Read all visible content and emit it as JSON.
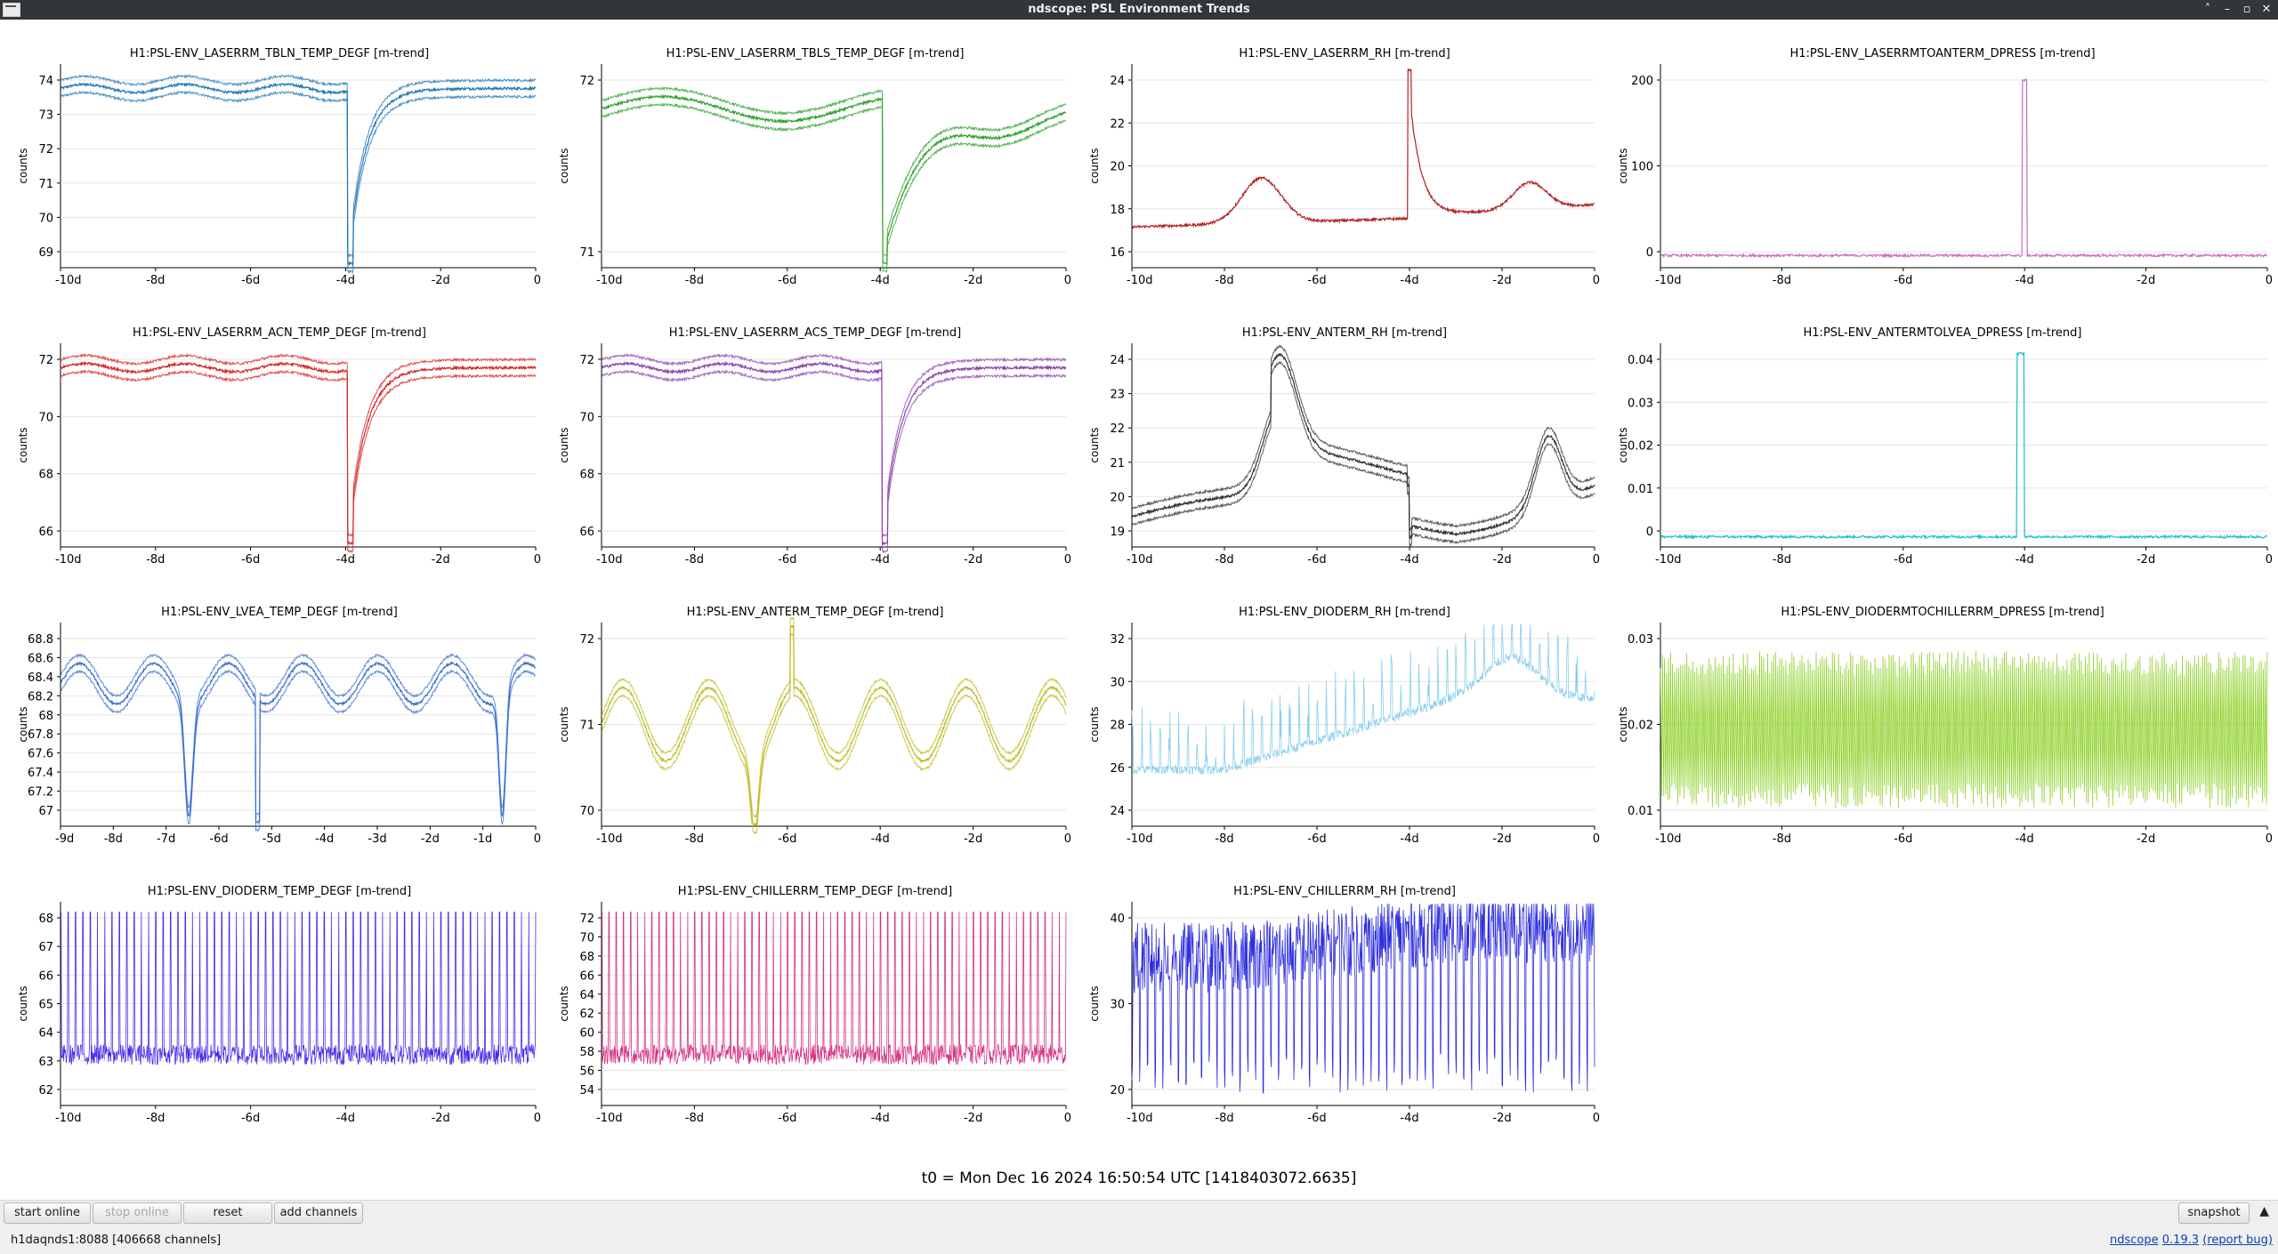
{
  "window": {
    "title": "ndscope: PSL Environment Trends",
    "controls": [
      "˄",
      "–",
      "▫",
      "✕"
    ]
  },
  "plots": [
    {
      "title": "H1:PSL-ENV_LASERRM_TBLN_TEMP_DEGF [m-trend]",
      "ylabel": "counts",
      "color": "#1f77b4",
      "yticks": [
        "74",
        "73",
        "72",
        "71",
        "70",
        "69"
      ],
      "xticks": [
        "-10d",
        "-8d",
        "-6d",
        "-4d",
        "-2d",
        "0"
      ],
      "signal": "temp-dip",
      "band": true
    },
    {
      "title": "H1:PSL-ENV_LASERRM_TBLS_TEMP_DEGF [m-trend]",
      "ylabel": "counts",
      "color": "#2ca02c",
      "yticks": [
        "72",
        "71"
      ],
      "xticks": [
        "-10d",
        "-8d",
        "-6d",
        "-4d",
        "-2d",
        "0"
      ],
      "signal": "temp-dip-wide",
      "band": true
    },
    {
      "title": "H1:PSL-ENV_LASERRM_RH [m-trend]",
      "ylabel": "counts",
      "color": "#b22222",
      "yticks": [
        "24",
        "22",
        "20",
        "18",
        "16"
      ],
      "xticks": [
        "-10d",
        "-8d",
        "-6d",
        "-4d",
        "-2d",
        "0"
      ],
      "signal": "rh-spike",
      "band": false
    },
    {
      "title": "H1:PSL-ENV_LASERRMTOANTERM_DPRESS [m-trend]",
      "ylabel": "counts",
      "color": "#c86dbf",
      "yticks": [
        "200",
        "100",
        "0"
      ],
      "xticks": [
        "-10d",
        "-8d",
        "-6d",
        "-4d",
        "-2d",
        "0"
      ],
      "signal": "impulse",
      "band": false
    },
    {
      "title": "H1:PSL-ENV_LASERRM_ACN_TEMP_DEGF [m-trend]",
      "ylabel": "counts",
      "color": "#d62728",
      "yticks": [
        "72",
        "70",
        "68",
        "66"
      ],
      "xticks": [
        "-10d",
        "-8d",
        "-6d",
        "-4d",
        "-2d",
        "0"
      ],
      "signal": "temp-dip",
      "band": true
    },
    {
      "title": "H1:PSL-ENV_LASERRM_ACS_TEMP_DEGF [m-trend]",
      "ylabel": "counts",
      "color": "#8e44ad",
      "yticks": [
        "72",
        "70",
        "68",
        "66"
      ],
      "xticks": [
        "-10d",
        "-8d",
        "-6d",
        "-4d",
        "-2d",
        "0"
      ],
      "signal": "temp-dip",
      "band": true
    },
    {
      "title": "H1:PSL-ENV_ANTERM_RH [m-trend]",
      "ylabel": "counts",
      "color": "#333333",
      "yticks": [
        "24",
        "23",
        "22",
        "21",
        "20",
        "19"
      ],
      "xticks": [
        "-10d",
        "-8d",
        "-6d",
        "-4d",
        "-2d",
        "0"
      ],
      "signal": "rh-rise",
      "band": true
    },
    {
      "title": "H1:PSL-ENV_ANTERMTOLVEA_DPRESS [m-trend]",
      "ylabel": "counts",
      "color": "#17becf",
      "yticks": [
        "0.04",
        "0.03",
        "0.02",
        "0.01",
        "0"
      ],
      "xticks": [
        "-10d",
        "-8d",
        "-6d",
        "-4d",
        "-2d",
        "0"
      ],
      "signal": "impulse-small",
      "band": false
    },
    {
      "title": "H1:PSL-ENV_LVEA_TEMP_DEGF [m-trend]",
      "ylabel": "counts",
      "color": "#3a6fd0",
      "yticks": [
        "68.8",
        "68.6",
        "68.4",
        "68.2",
        "68",
        "67.8",
        "67.6",
        "67.4",
        "67.2",
        "67"
      ],
      "xticks": [
        "-9d",
        "-8d",
        "-7d",
        "-6d",
        "-5d",
        "-4d",
        "-3d",
        "-2d",
        "-1d",
        "0"
      ],
      "signal": "lvea",
      "band": true
    },
    {
      "title": "H1:PSL-ENV_ANTERM_TEMP_DEGF [m-trend]",
      "ylabel": "counts",
      "color": "#bcbd22",
      "yticks": [
        "72",
        "71",
        "70"
      ],
      "xticks": [
        "-10d",
        "-8d",
        "-6d",
        "-4d",
        "-2d",
        "0"
      ],
      "signal": "wavy",
      "band": true
    },
    {
      "title": "H1:PSL-ENV_DIODERM_RH [m-trend]",
      "ylabel": "counts",
      "color": "#87ceeb",
      "yticks": [
        "32",
        "30",
        "28",
        "26",
        "24"
      ],
      "xticks": [
        "-10d",
        "-8d",
        "-6d",
        "-4d",
        "-2d",
        "0"
      ],
      "signal": "saw-rh",
      "band": false
    },
    {
      "title": "H1:PSL-ENV_DIODERMTOCHILLERRM_DPRESS [m-trend]",
      "ylabel": "counts",
      "color": "#8fd12a",
      "yticks": [
        "0.03",
        "0.02",
        "0.01"
      ],
      "xticks": [
        "-10d",
        "-8d",
        "-6d",
        "-4d",
        "-2d",
        "0"
      ],
      "signal": "noise-bands",
      "band": false
    },
    {
      "title": "H1:PSL-ENV_DIODERM_TEMP_DEGF [m-trend]",
      "ylabel": "counts",
      "color": "#4b2be8",
      "yticks": [
        "68",
        "67",
        "66",
        "65",
        "64",
        "63",
        "62"
      ],
      "xticks": [
        "-10d",
        "-8d",
        "-6d",
        "-4d",
        "-2d",
        "0"
      ],
      "signal": "saw-temp",
      "band": false
    },
    {
      "title": "H1:PSL-ENV_CHILLERRM_TEMP_DEGF [m-trend]",
      "ylabel": "counts",
      "color": "#d63384",
      "yticks": [
        "72",
        "70",
        "68",
        "66",
        "64",
        "62",
        "60",
        "58",
        "56",
        "54"
      ],
      "xticks": [
        "-10d",
        "-8d",
        "-6d",
        "-4d",
        "-2d",
        "0"
      ],
      "signal": "saw-temp",
      "band": false
    },
    {
      "title": "H1:PSL-ENV_CHILLERRM_RH [m-trend]",
      "ylabel": "counts",
      "color": "#2f2fe0",
      "yticks": [
        "40",
        "30",
        "20"
      ],
      "xticks": [
        "-10d",
        "-8d",
        "-6d",
        "-4d",
        "-2d",
        "0"
      ],
      "signal": "saw-chill",
      "band": false
    }
  ],
  "t0_label": "t0 = Mon Dec 16 2024 16:50:54 UTC [1418403072.6635]",
  "buttons": {
    "start_online": "start online",
    "stop_online": "stop online",
    "reset": "reset",
    "add_channels": "add channels",
    "snapshot": "snapshot",
    "collapse": "▲"
  },
  "status": {
    "server": "h1daqnds1:8088  [406668 channels]",
    "app_name": "ndscope",
    "version": "0.19.3",
    "report_bug": "(report bug)"
  }
}
